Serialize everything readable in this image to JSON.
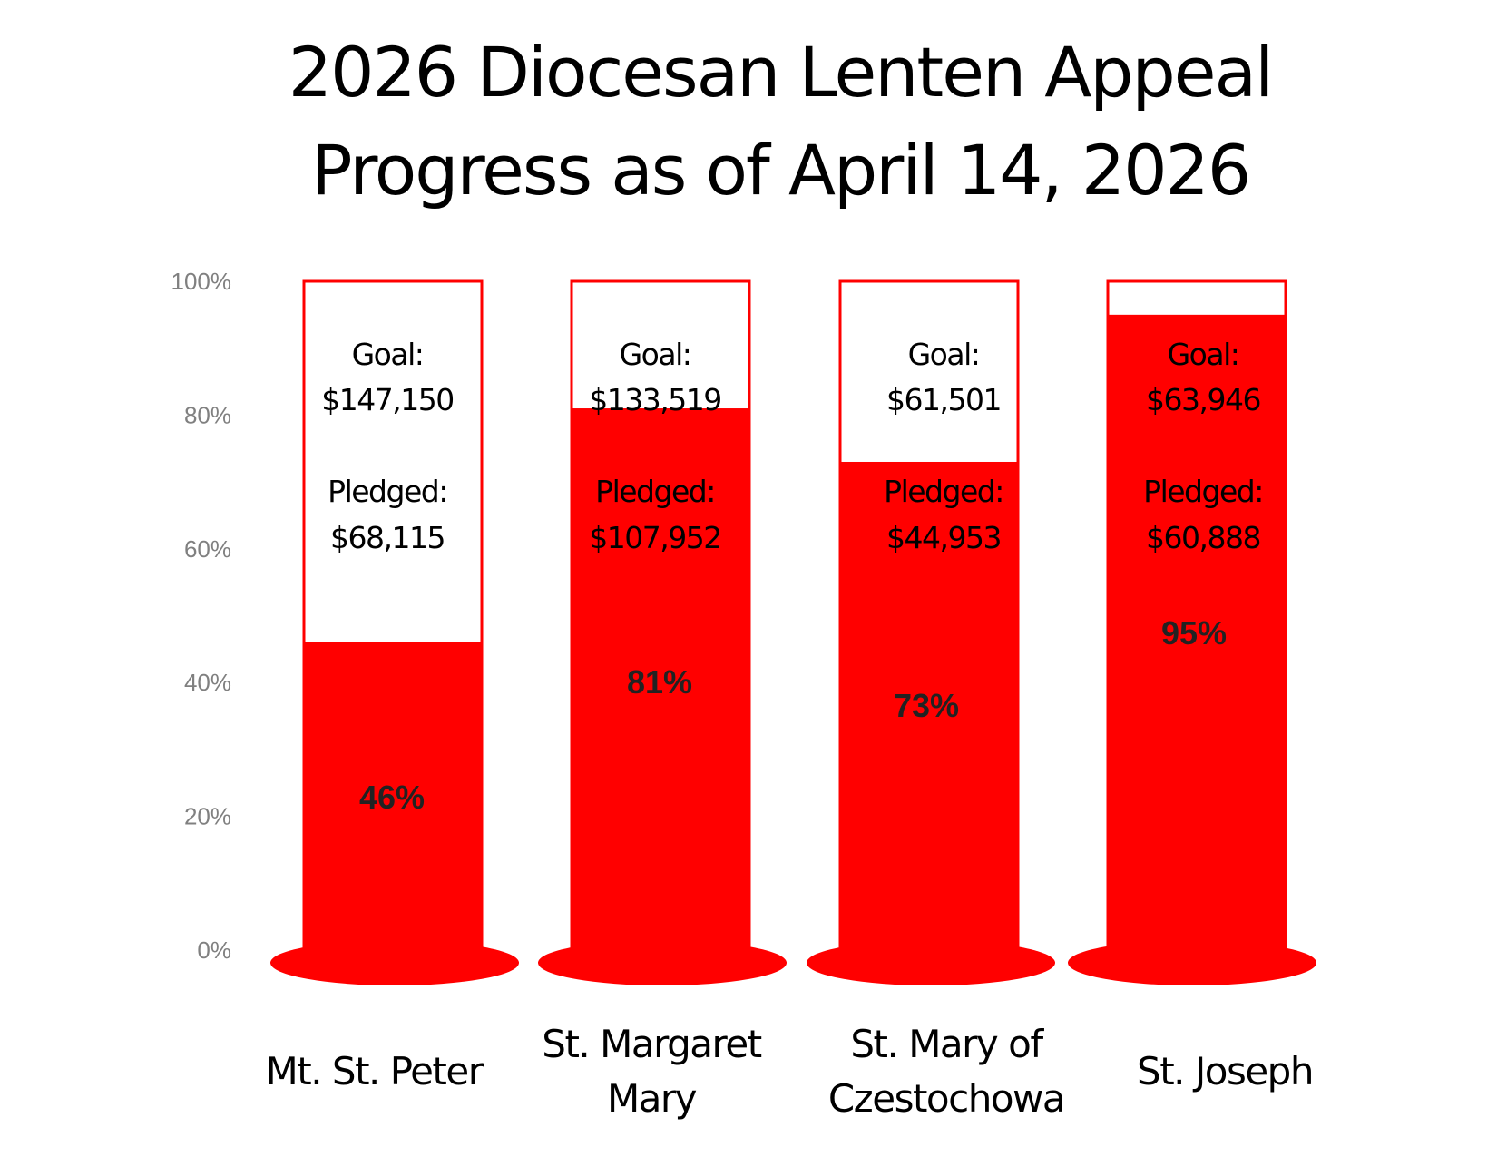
{
  "title_line1": "2026 Diocesan Lenten Appeal",
  "title_line2": "Progress as of April 14, 2026",
  "colors": {
    "fill": "#ff0000",
    "outline": "#ff0000",
    "empty": "#ffffff",
    "tick": "#808080"
  },
  "chart_data": {
    "type": "bar",
    "title": "2026 Diocesan Lenten Appeal Progress as of April 14, 2026",
    "ylim": [
      0,
      100
    ],
    "y_ticks": [
      "0%",
      "20%",
      "40%",
      "60%",
      "80%",
      "100%"
    ],
    "grid": false,
    "legend": "none",
    "categories": [
      {
        "label_lines": [
          "Mt. St. Peter"
        ],
        "goal_label": "Goal:",
        "goal": "$147,150",
        "pledged_label": "Pledged:",
        "pledged": "$68,115",
        "percent_label": "46%",
        "value": 46
      },
      {
        "label_lines": [
          "St. Margaret",
          "Mary"
        ],
        "goal_label": "Goal:",
        "goal": "$133,519",
        "pledged_label": "Pledged:",
        "pledged": "$107,952",
        "percent_label": "81%",
        "value": 81
      },
      {
        "label_lines": [
          "St. Mary of",
          "Czestochowa"
        ],
        "goal_label": "Goal:",
        "goal": "$61,501",
        "pledged_label": "Pledged:",
        "pledged": "$44,953",
        "percent_label": "73%",
        "value": 73
      },
      {
        "label_lines": [
          "St. Joseph"
        ],
        "goal_label": "Goal:",
        "goal": "$63,946",
        "pledged_label": "Pledged:",
        "pledged": "$60,888",
        "percent_label": "95%",
        "value": 95
      }
    ]
  }
}
